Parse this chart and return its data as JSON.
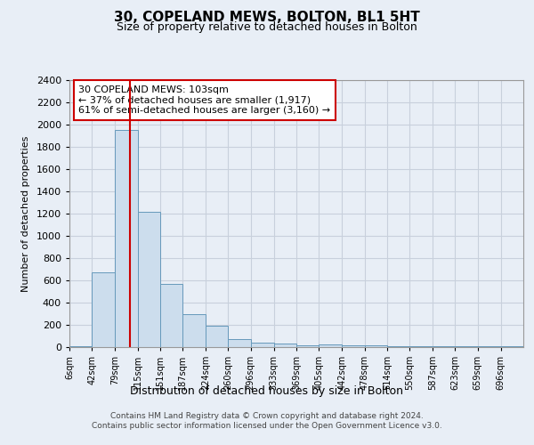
{
  "title": "30, COPELAND MEWS, BOLTON, BL1 5HT",
  "subtitle": "Size of property relative to detached houses in Bolton",
  "xlabel": "Distribution of detached houses by size in Bolton",
  "ylabel": "Number of detached properties",
  "footer_line1": "Contains HM Land Registry data © Crown copyright and database right 2024.",
  "footer_line2": "Contains public sector information licensed under the Open Government Licence v3.0.",
  "annotation_title": "30 COPELAND MEWS: 103sqm",
  "annotation_line1": "← 37% of detached houses are smaller (1,917)",
  "annotation_line2": "61% of semi-detached houses are larger (3,160) →",
  "bar_color": "#ccdded",
  "bar_edge_color": "#6699bb",
  "vline_color": "#cc0000",
  "vline_x": 103,
  "bin_edges": [
    6,
    42,
    79,
    115,
    151,
    187,
    224,
    260,
    296,
    333,
    369,
    405,
    442,
    478,
    514,
    550,
    587,
    623,
    659,
    696,
    732
  ],
  "bar_heights": [
    10,
    675,
    1950,
    1220,
    570,
    300,
    195,
    75,
    40,
    30,
    20,
    25,
    20,
    15,
    10,
    5,
    5,
    5,
    5,
    5
  ],
  "ylim": [
    0,
    2400
  ],
  "yticks": [
    0,
    200,
    400,
    600,
    800,
    1000,
    1200,
    1400,
    1600,
    1800,
    2000,
    2200,
    2400
  ],
  "grid_color": "#c8d0dc",
  "background_color": "#e8eef6",
  "plot_bg_color": "#e8eef6"
}
